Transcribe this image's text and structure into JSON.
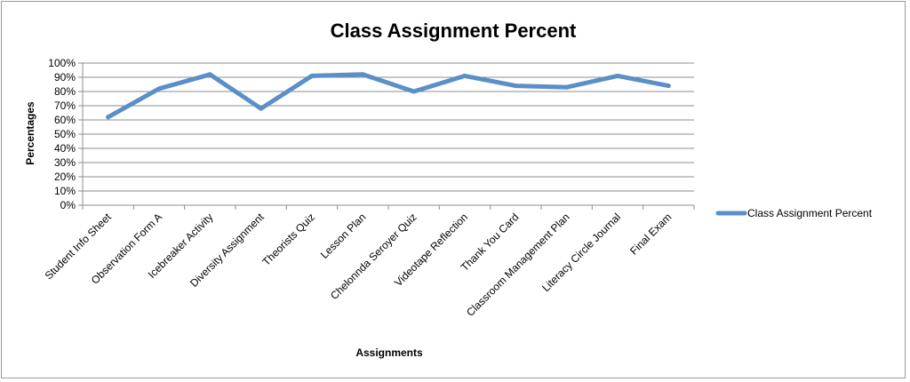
{
  "chart_data": {
    "type": "line",
    "title": "Class Assignment Percent",
    "xlabel": "Assignments",
    "ylabel": "Percentages",
    "ylim": [
      0,
      100
    ],
    "ytick_labels": [
      "0%",
      "10%",
      "20%",
      "30%",
      "40%",
      "50%",
      "60%",
      "70%",
      "80%",
      "90%",
      "100%"
    ],
    "grid": true,
    "legend_position": "right",
    "categories": [
      "Student Info Sheet",
      "Observation Form A",
      "Icebreaker Activity",
      "Diversity Assignment",
      "Theorists Quiz",
      "Lesson Plan",
      "Chelonnda Seroyer Quiz",
      "Videotape Reflection",
      "Thank You Card",
      "Classroom Management Plan",
      "Literacy Circle Journal",
      "Final Exam"
    ],
    "series": [
      {
        "name": "Class Assignment Percent",
        "color": "#5b8fc7",
        "values": [
          62,
          82,
          92,
          68,
          91,
          92,
          80,
          91,
          84,
          83,
          91,
          84
        ]
      }
    ]
  }
}
